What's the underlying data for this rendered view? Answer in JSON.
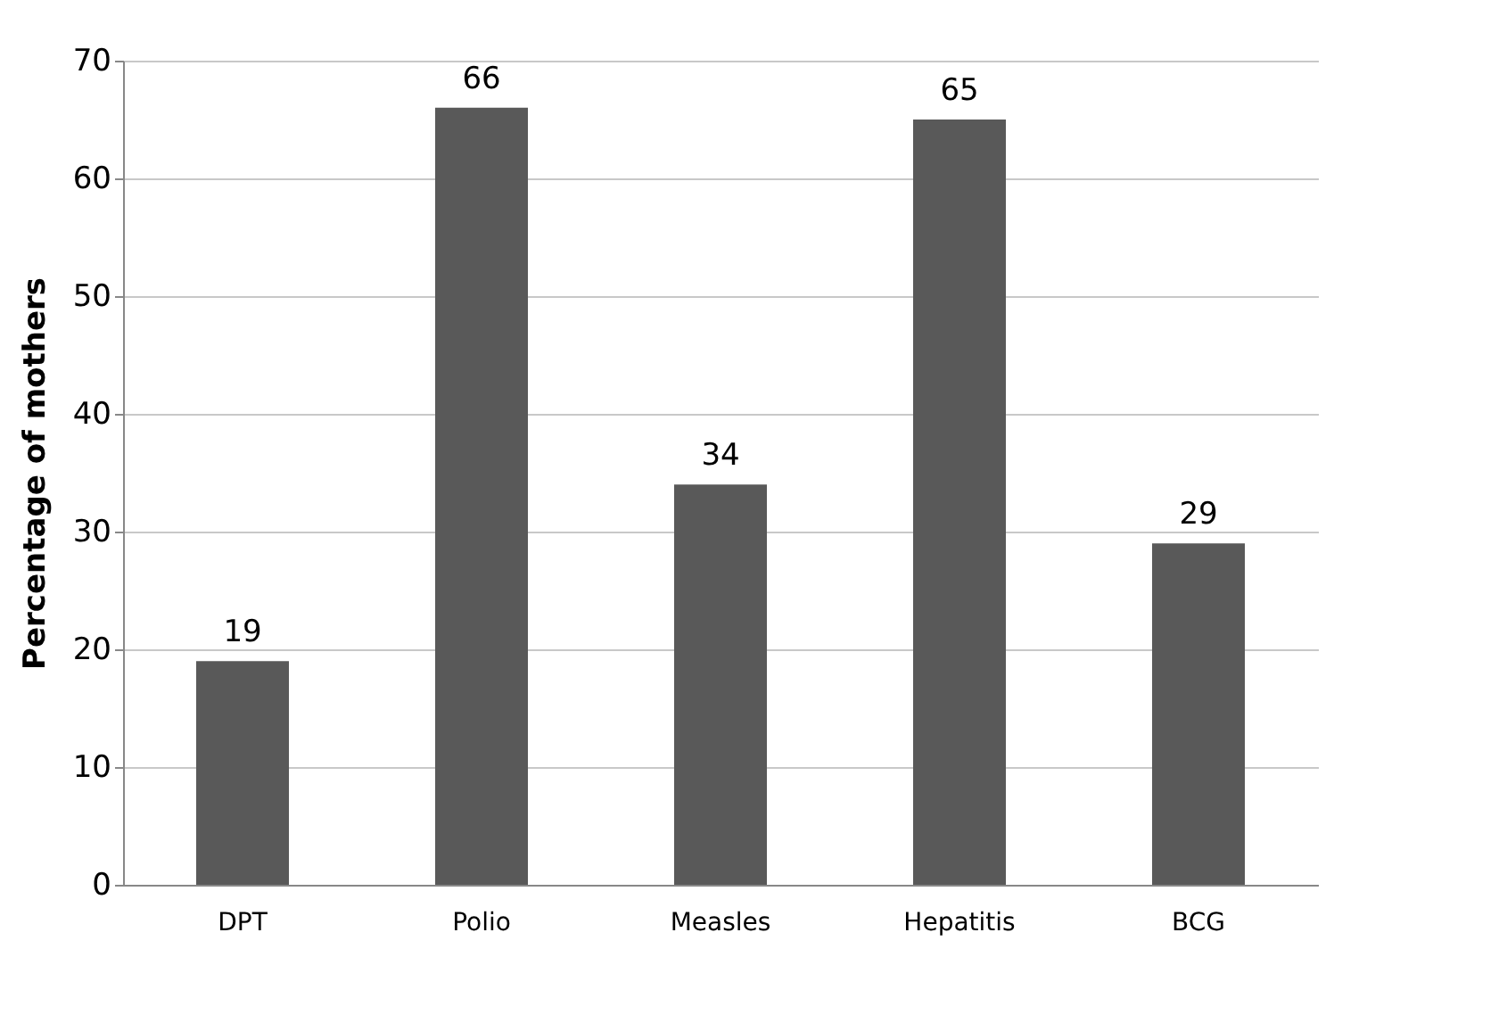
{
  "chart_data": {
    "type": "bar",
    "ylabel": "Percentage of mothers",
    "categories": [
      "DPT",
      "Polio",
      "Measles",
      "Hepatitis",
      "BCG"
    ],
    "values": [
      19,
      66,
      34,
      65,
      29
    ],
    "color": "#595959",
    "ylim": [
      0,
      70
    ],
    "yticks": [
      0,
      10,
      20,
      30,
      40,
      50,
      60,
      70
    ],
    "grid": "y",
    "data_labels": true
  }
}
